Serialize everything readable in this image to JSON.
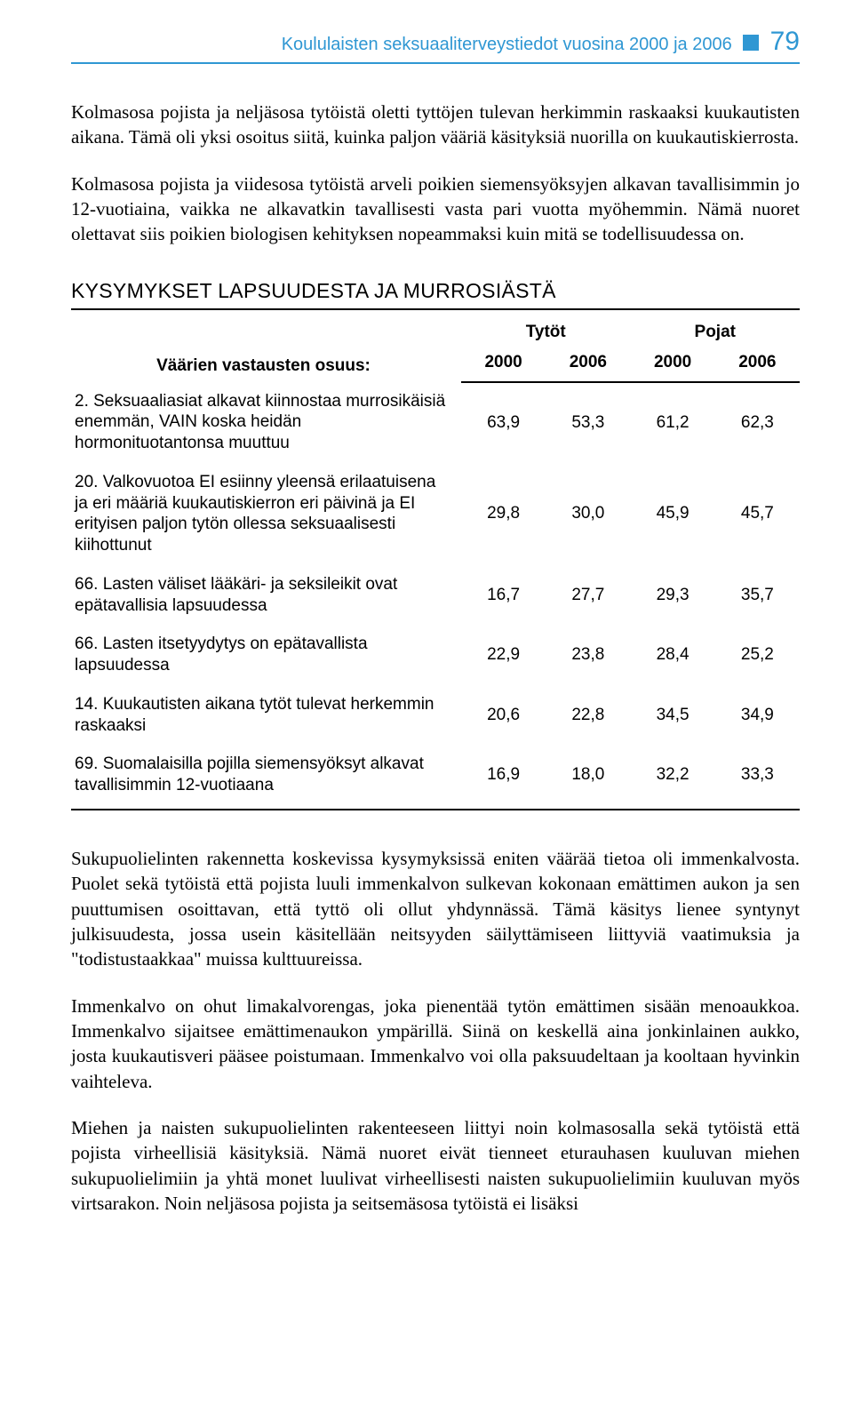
{
  "colors": {
    "accent": "#2f97d3",
    "text": "#000000",
    "border": "#000000",
    "background": "#ffffff"
  },
  "header": {
    "title": "Koululaisten seksuaaliterveystiedot vuosina 2000 ja 2006",
    "page_number": "79"
  },
  "paragraphs": {
    "p1": "Kolmasosa pojista ja neljäsosa tytöistä oletti tyttöjen tulevan herkimmin raskaaksi kuukautisten aikana. Tämä oli yksi osoitus siitä, kuinka paljon vääriä käsityksiä nuorilla on kuukautiskierrosta.",
    "p2": "Kolmasosa pojista ja viidesosa tytöistä arveli poikien siemensyöksyjen alkavan tavallisimmin jo 12-vuotiaina, vaikka ne alkavatkin tavallisesti vasta pari vuotta myöhemmin. Nämä nuoret olettavat siis poikien biologisen kehityksen nopeammaksi kuin mitä se todellisuudessa on.",
    "p3": "Sukupuolielinten rakennetta koskevissa kysymyksissä eniten väärää tietoa oli immenkalvosta. Puolet sekä tytöistä että pojista luuli immenkalvon sulkevan kokonaan emättimen aukon ja sen puuttumisen osoittavan, että tyttö oli ollut yhdynnässä. Tämä käsitys lienee syntynyt julkisuudesta, jossa usein käsitellään neitsyyden säilyttämiseen liittyviä vaatimuksia ja \"todistustaakkaa\" muissa kulttuureissa.",
    "p4": "Immenkalvo on ohut limakalvorengas, joka pienentää tytön emättimen sisään menoaukkoa. Immenkalvo sijaitsee emättimenaukon ympärillä. Siinä on keskellä aina jonkinlainen aukko, josta kuukautisveri pääsee poistumaan. Immenkalvo voi olla paksuudeltaan ja kooltaan hyvinkin vaihteleva.",
    "p5": "Miehen ja naisten sukupuolielinten rakenteeseen liittyi noin kolmasosalla sekä tytöistä että pojista virheellisiä käsityksiä. Nämä nuoret eivät tienneet eturauhasen kuuluvan miehen sukupuolielimiin ja yhtä monet luulivat virheellisesti naisten sukupuolielimiin kuuluvan myös virtsarakon. Noin neljäsosa pojista ja seitsemäsosa tytöistä ei lisäksi"
  },
  "table": {
    "heading": "KYSYMYKSET LAPSUUDESTA JA MURROSIÄSTÄ",
    "caption": "Väärien vastausten osuus:",
    "group_headers": [
      "Tytöt",
      "Pojat"
    ],
    "year_headers": [
      "2000",
      "2006",
      "2000",
      "2006"
    ],
    "rows": [
      {
        "label": "2. Seksuaaliasiat alkavat kiinnostaa murrosikäisiä enemmän, VAIN koska heidän hormonituotantonsa muuttuu",
        "values": [
          "63,9",
          "53,3",
          "61,2",
          "62,3"
        ]
      },
      {
        "label": "20. Valkovuotoa EI esiinny yleensä erilaatuisena ja eri määriä kuukautiskierron eri päivinä ja EI erityisen paljon tytön ollessa seksuaalisesti kiihottunut",
        "values": [
          "29,8",
          "30,0",
          "45,9",
          "45,7"
        ]
      },
      {
        "label": "66. Lasten väliset lääkäri- ja seksileikit ovat epätavallisia lapsuudessa",
        "values": [
          "16,7",
          "27,7",
          "29,3",
          "35,7"
        ]
      },
      {
        "label": "66. Lasten itsetyydytys on epätavallista lapsuudessa",
        "values": [
          "22,9",
          "23,8",
          "28,4",
          "25,2"
        ]
      },
      {
        "label": "14. Kuukautisten aikana tytöt tulevat herkemmin raskaaksi",
        "values": [
          "20,6",
          "22,8",
          "34,5",
          "34,9"
        ]
      },
      {
        "label": "69. Suomalaisilla pojilla siemensyöksyt alkavat tavallisimmin 12-vuotiaana",
        "values": [
          "16,9",
          "18,0",
          "32,2",
          "33,3"
        ]
      }
    ]
  }
}
